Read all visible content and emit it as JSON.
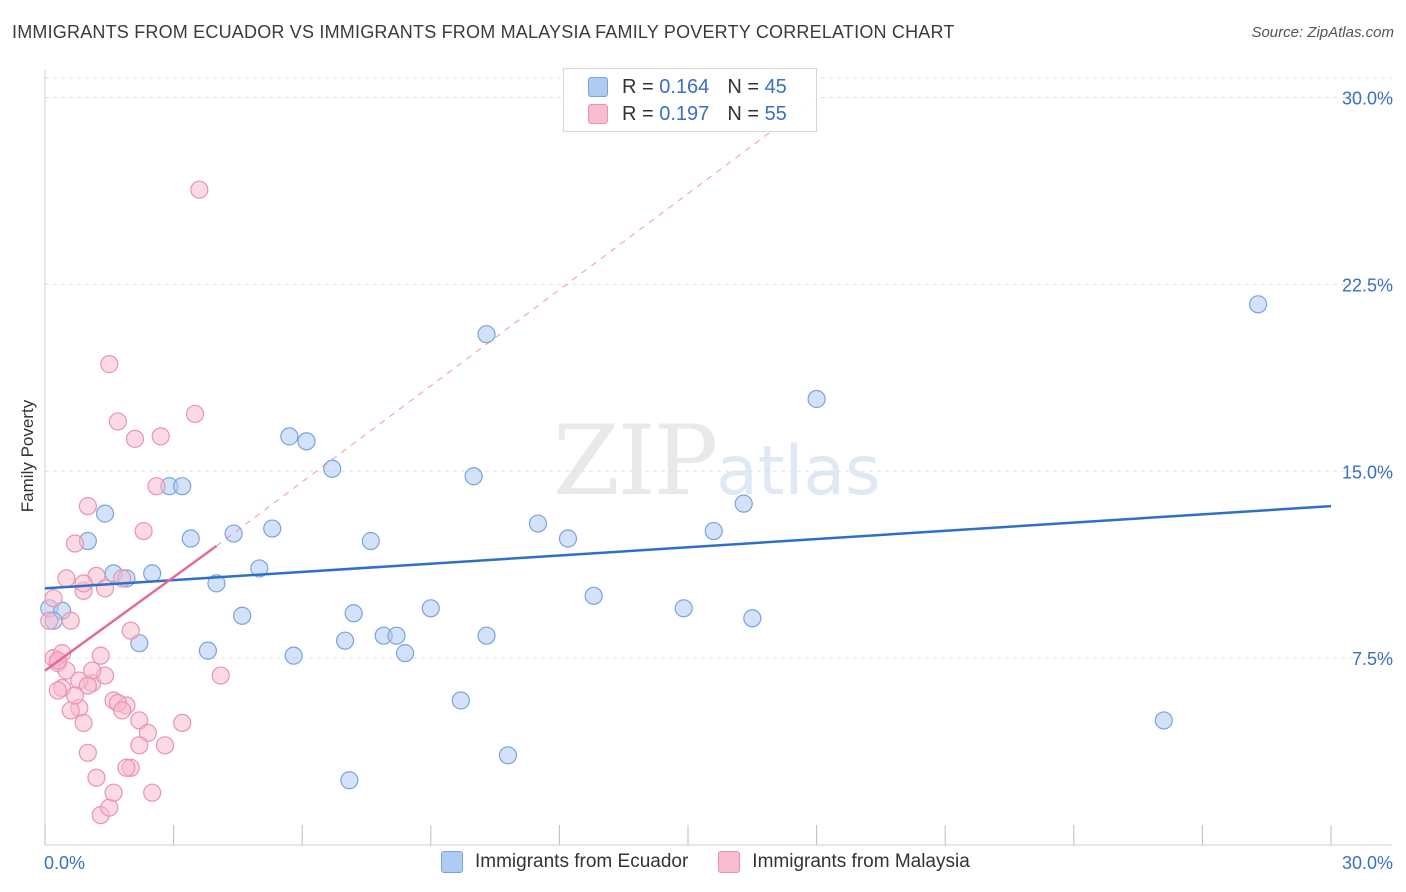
{
  "header": {
    "title": "IMMIGRANTS FROM ECUADOR VS IMMIGRANTS FROM MALAYSIA FAMILY POVERTY CORRELATION CHART",
    "source": "Source: ZipAtlas.com"
  },
  "watermark": {
    "zip": "ZIP",
    "atlas": "atlas"
  },
  "legend": {
    "ecuador": {
      "r_label": "R = ",
      "r_value": "0.164",
      "n_label": "N = ",
      "n_value": "45"
    },
    "malaysia": {
      "r_label": "R = ",
      "r_value": "0.197",
      "n_label": "N = ",
      "n_value": "55"
    }
  },
  "colors": {
    "ecuador_fill": "#aecbf2",
    "ecuador_stroke": "#7aa4dc",
    "ecuador_line": "#2f6fcc",
    "malaysia_fill": "#f7bccd",
    "malaysia_stroke": "#e994b0",
    "malaysia_line": "#e46b93",
    "tick_label": "#3a6fc4",
    "grid": "#e2e2e2"
  },
  "chart_data": {
    "type": "scatter",
    "title": "IMMIGRANTS FROM ECUADOR VS IMMIGRANTS FROM MALAYSIA FAMILY POVERTY CORRELATION CHART",
    "xlabel": "",
    "ylabel": "Family Poverty",
    "xlim": [
      0,
      30
    ],
    "ylim": [
      0,
      31
    ],
    "x_tick_labels": [
      "0.0%",
      "30.0%"
    ],
    "y_ticks": [
      7.5,
      15.0,
      22.5,
      30.0
    ],
    "y_tick_labels": [
      "7.5%",
      "15.0%",
      "22.5%",
      "30.0%"
    ],
    "legend_position": "top-center",
    "series": [
      {
        "name": "Immigrants from Ecuador",
        "points": [
          [
            0.1,
            9.5
          ],
          [
            0.4,
            9.4
          ],
          [
            1.0,
            12.2
          ],
          [
            1.4,
            13.3
          ],
          [
            1.6,
            10.9
          ],
          [
            1.9,
            10.7
          ],
          [
            2.2,
            8.1
          ],
          [
            2.5,
            10.9
          ],
          [
            2.9,
            14.4
          ],
          [
            3.2,
            14.4
          ],
          [
            3.4,
            12.3
          ],
          [
            3.8,
            7.8
          ],
          [
            4.0,
            10.5
          ],
          [
            4.4,
            12.5
          ],
          [
            4.6,
            9.2
          ],
          [
            5.0,
            11.1
          ],
          [
            5.3,
            12.7
          ],
          [
            5.7,
            16.4
          ],
          [
            5.8,
            7.6
          ],
          [
            6.1,
            16.2
          ],
          [
            6.7,
            15.1
          ],
          [
            7.0,
            8.2
          ],
          [
            7.2,
            9.3
          ],
          [
            7.6,
            12.2
          ],
          [
            7.9,
            8.4
          ],
          [
            8.2,
            8.4
          ],
          [
            8.4,
            7.7
          ],
          [
            9.0,
            9.5
          ],
          [
            9.7,
            5.8
          ],
          [
            10.0,
            14.8
          ],
          [
            10.3,
            20.5
          ],
          [
            10.3,
            8.4
          ],
          [
            10.8,
            3.6
          ],
          [
            11.5,
            12.9
          ],
          [
            12.2,
            12.3
          ],
          [
            12.8,
            10.0
          ],
          [
            14.9,
            9.5
          ],
          [
            15.6,
            12.6
          ],
          [
            16.3,
            13.7
          ],
          [
            16.5,
            9.1
          ],
          [
            18.0,
            17.9
          ],
          [
            26.1,
            5.0
          ],
          [
            28.3,
            21.7
          ],
          [
            7.1,
            2.6
          ],
          [
            0.2,
            9.0
          ]
        ]
      },
      {
        "name": "Immigrants from Malaysia",
        "points": [
          [
            0.1,
            9.0
          ],
          [
            0.2,
            7.5
          ],
          [
            0.3,
            7.3
          ],
          [
            0.4,
            6.3
          ],
          [
            0.5,
            10.7
          ],
          [
            0.6,
            9.0
          ],
          [
            0.7,
            12.1
          ],
          [
            0.8,
            5.5
          ],
          [
            0.9,
            10.2
          ],
          [
            1.0,
            13.6
          ],
          [
            1.0,
            3.7
          ],
          [
            1.1,
            6.5
          ],
          [
            1.2,
            10.8
          ],
          [
            1.3,
            7.6
          ],
          [
            1.4,
            6.8
          ],
          [
            1.5,
            19.3
          ],
          [
            1.6,
            5.8
          ],
          [
            1.7,
            17.0
          ],
          [
            1.8,
            10.7
          ],
          [
            1.9,
            5.6
          ],
          [
            2.0,
            3.1
          ],
          [
            2.1,
            16.3
          ],
          [
            2.2,
            5.0
          ],
          [
            2.3,
            12.6
          ],
          [
            2.4,
            4.5
          ],
          [
            2.5,
            2.1
          ],
          [
            2.6,
            14.4
          ],
          [
            2.7,
            16.4
          ],
          [
            2.8,
            4.0
          ],
          [
            3.2,
            4.9
          ],
          [
            3.5,
            17.3
          ],
          [
            3.6,
            26.3
          ],
          [
            0.3,
            6.2
          ],
          [
            0.5,
            7.0
          ],
          [
            0.6,
            5.4
          ],
          [
            0.8,
            6.6
          ],
          [
            0.9,
            4.9
          ],
          [
            1.1,
            7.0
          ],
          [
            1.2,
            2.7
          ],
          [
            1.3,
            1.2
          ],
          [
            1.5,
            1.5
          ],
          [
            1.6,
            2.1
          ],
          [
            1.7,
            5.7
          ],
          [
            1.8,
            5.4
          ],
          [
            1.9,
            3.1
          ],
          [
            2.0,
            8.6
          ],
          [
            2.2,
            4.0
          ],
          [
            4.1,
            6.8
          ],
          [
            0.2,
            9.9
          ],
          [
            0.4,
            7.7
          ],
          [
            0.7,
            6.0
          ],
          [
            1.0,
            6.4
          ],
          [
            1.4,
            10.3
          ],
          [
            0.9,
            10.5
          ],
          [
            0.3,
            7.4
          ]
        ]
      }
    ],
    "trend_lines": [
      {
        "series": "Immigrants from Ecuador",
        "x": [
          0,
          30
        ],
        "y": [
          10.3,
          13.6
        ],
        "style": "solid"
      },
      {
        "series": "Immigrants from Malaysia",
        "x": [
          0,
          4.0
        ],
        "y": [
          7.0,
          12.0
        ],
        "style": "solid"
      },
      {
        "series": "Immigrants from Malaysia",
        "x": [
          4.0,
          18.0
        ],
        "y": [
          12.0,
          30.0
        ],
        "style": "dashed"
      }
    ]
  }
}
